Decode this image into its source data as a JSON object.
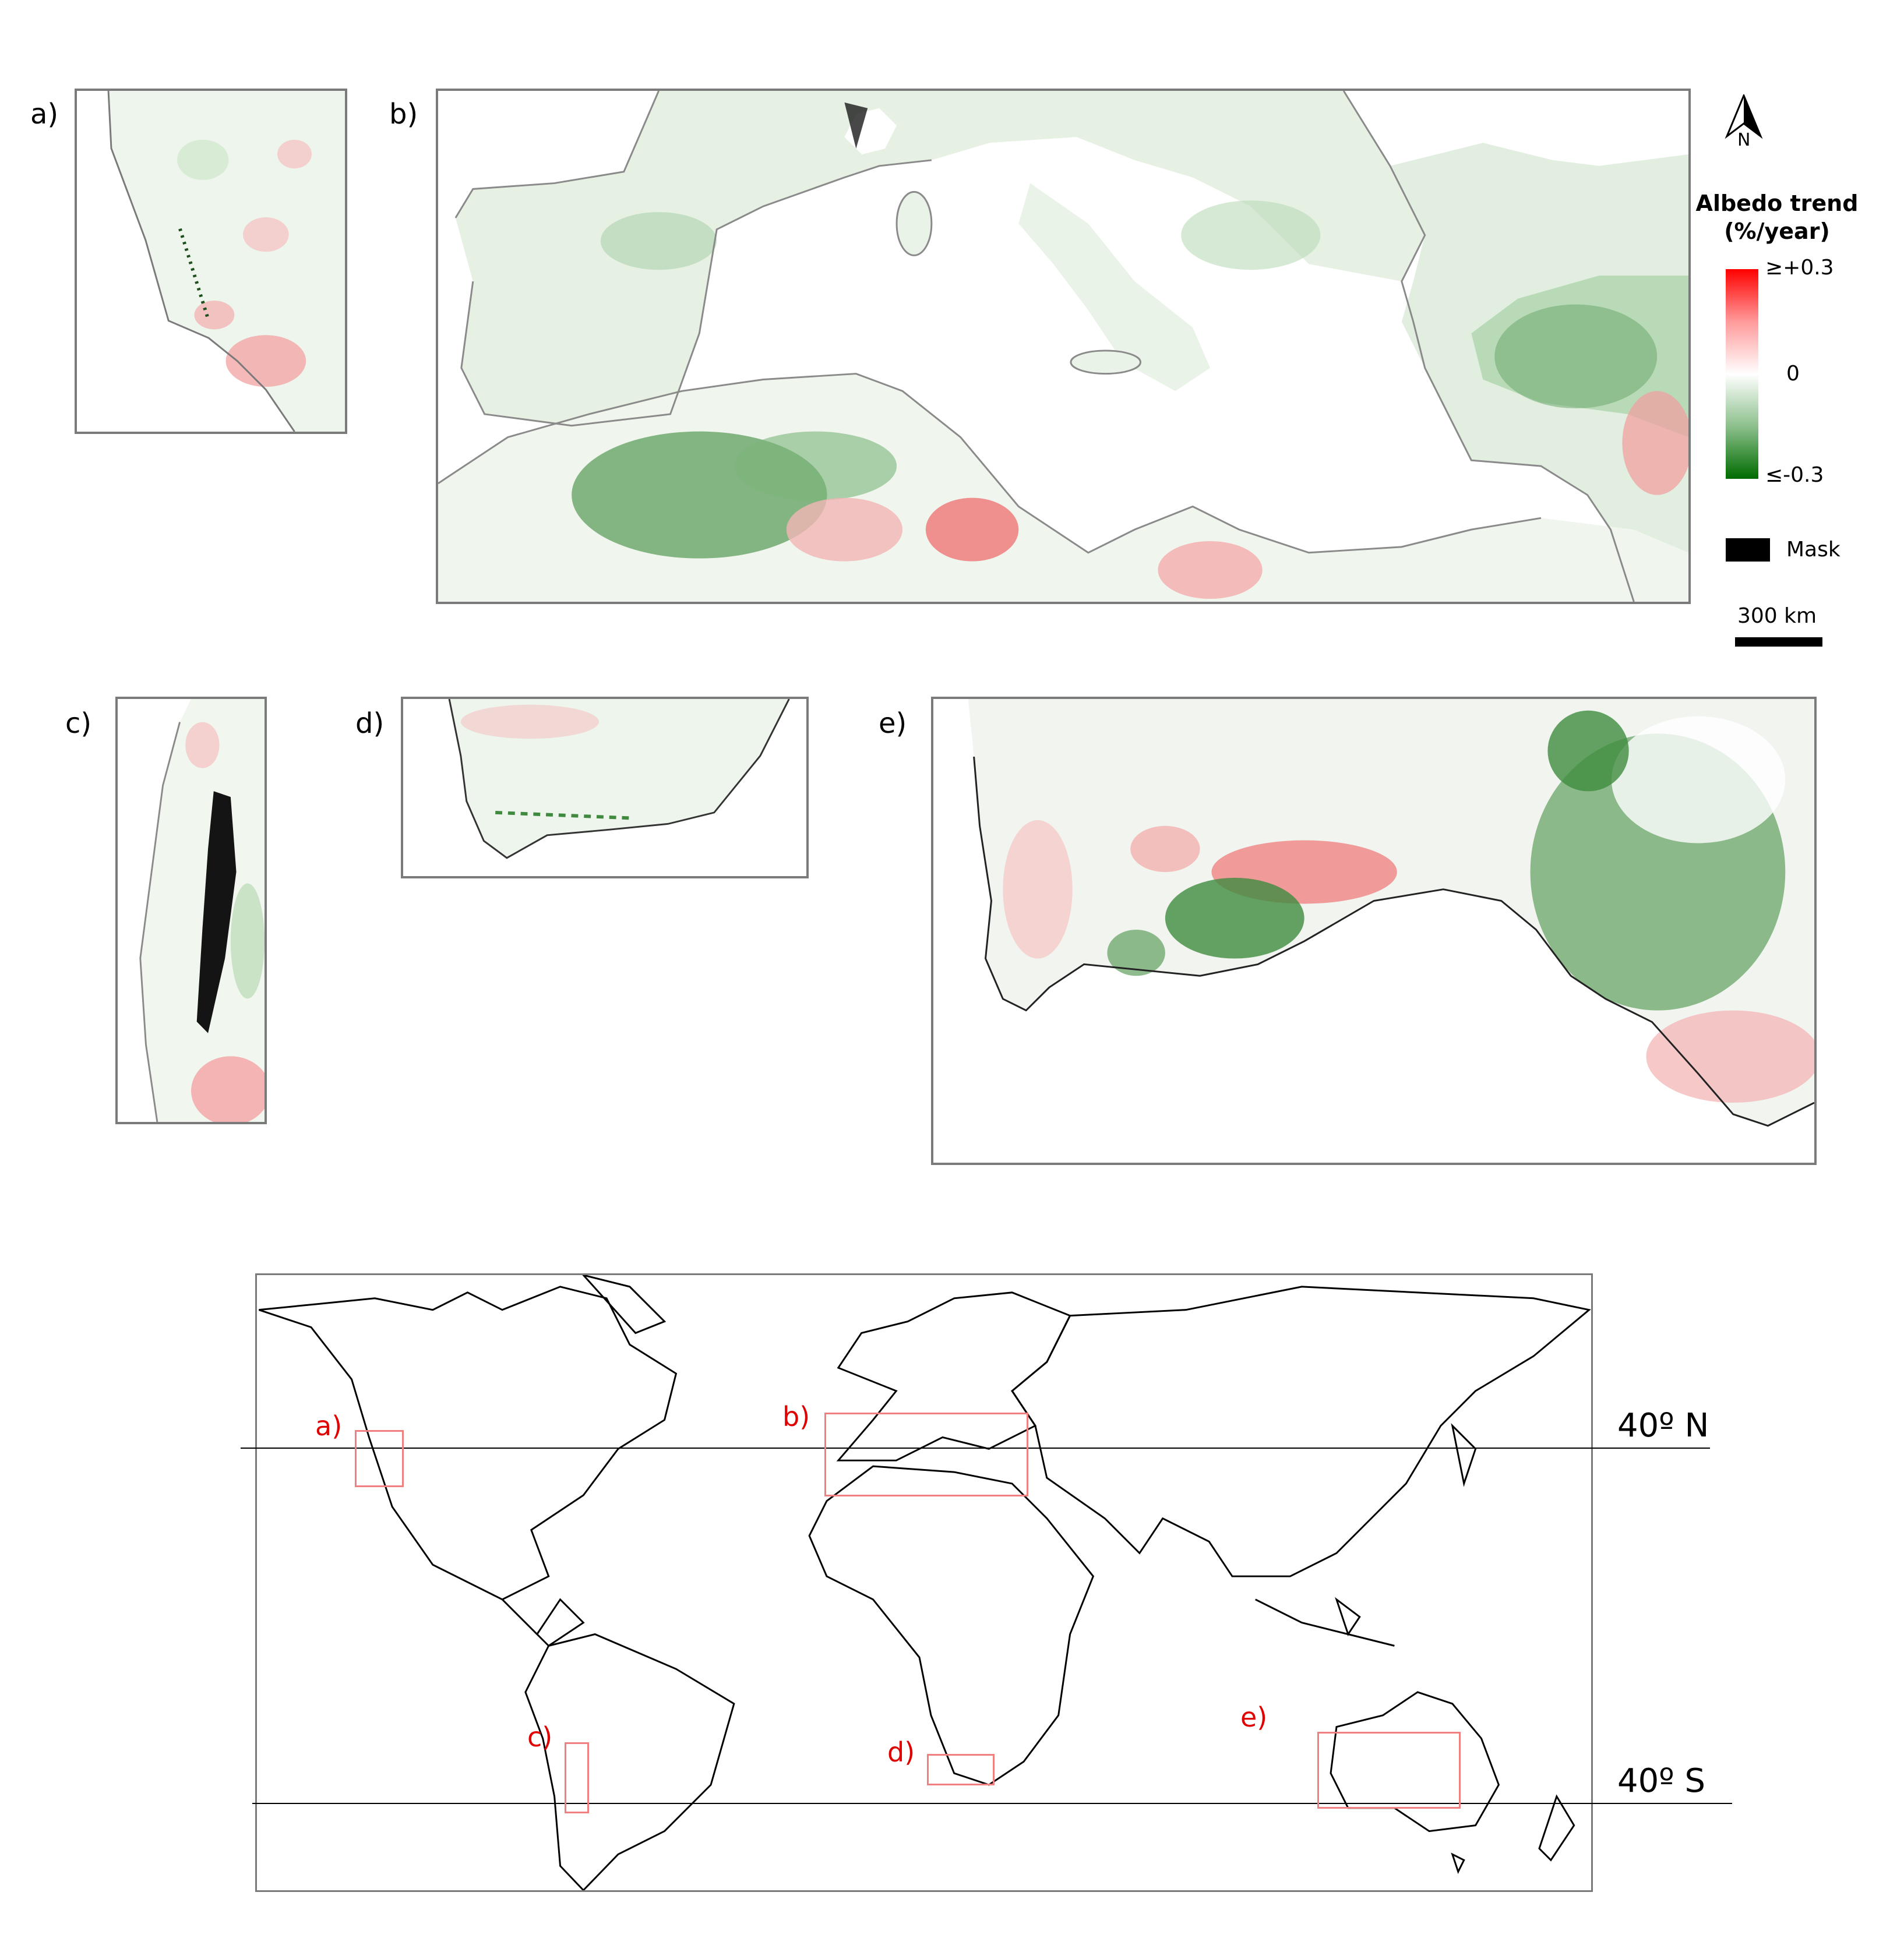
{
  "panels": [
    {
      "id": "a",
      "label": "a)"
    },
    {
      "id": "b",
      "label": "b)"
    },
    {
      "id": "c",
      "label": "c)"
    },
    {
      "id": "d",
      "label": "d)"
    },
    {
      "id": "e",
      "label": "e)"
    }
  ],
  "legend": {
    "north_arrow_label": "N",
    "title_line1": "Albedo trend",
    "title_line2": "(%/year)",
    "colorbar_max": "≥+0.3",
    "colorbar_mid": "0",
    "colorbar_min": "≤-0.3",
    "color_high": "#ff0000",
    "color_mid": "#ffffff",
    "color_low": "#006b00",
    "mask_label": "Mask",
    "mask_color": "#000000",
    "scalebar_label": "300 km"
  },
  "overview": {
    "lat_north_label": "40º N",
    "lat_south_label": "40º S",
    "region_labels": [
      "a)",
      "b)",
      "c)",
      "d)",
      "e)"
    ],
    "region_color": "#f08080"
  }
}
